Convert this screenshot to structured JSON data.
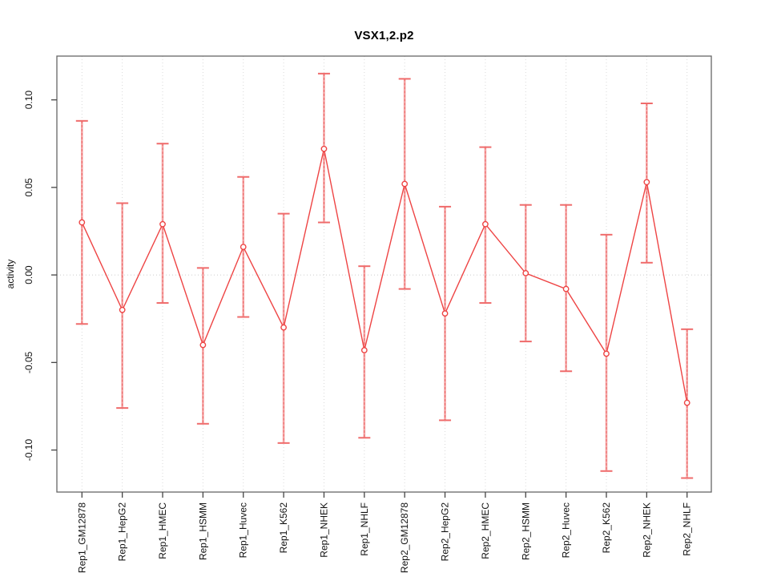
{
  "window": {
    "title": "VSX1,2.p2"
  },
  "chart_data": {
    "type": "line",
    "title": "VSX1,2.p2",
    "xlabel": "",
    "ylabel": "activity",
    "legend": "none",
    "grid": "vertical dotted gridline per category; dotted horizontal line at y=0",
    "categories": [
      "Rep1_GM12878",
      "Rep1_HepG2",
      "Rep1_HMEC",
      "Rep1_HSMM",
      "Rep1_Huvec",
      "Rep1_K562",
      "Rep1_NHEK",
      "Rep1_NHLF",
      "Rep2_GM12878",
      "Rep2_HepG2",
      "Rep2_HMEC",
      "Rep2_HSMM",
      "Rep2_Huvec",
      "Rep2_K562",
      "Rep2_NHEK",
      "Rep2_NHLF"
    ],
    "series": [
      {
        "name": "activity",
        "values": [
          0.03,
          -0.02,
          0.029,
          -0.04,
          0.016,
          -0.03,
          0.072,
          -0.043,
          0.052,
          -0.022,
          0.029,
          0.001,
          -0.008,
          -0.045,
          0.053,
          -0.073
        ]
      }
    ],
    "error_upper": [
      0.088,
      0.041,
      0.075,
      0.004,
      0.056,
      0.035,
      0.115,
      0.005,
      0.112,
      0.039,
      0.073,
      0.04,
      0.04,
      0.023,
      0.098,
      -0.031
    ],
    "error_lower": [
      -0.028,
      -0.076,
      -0.016,
      -0.085,
      -0.024,
      -0.096,
      0.03,
      -0.093,
      -0.008,
      -0.083,
      -0.016,
      -0.038,
      -0.055,
      -0.112,
      0.007,
      -0.116
    ],
    "yticks": [
      -0.1,
      -0.05,
      0.0,
      0.05,
      0.1
    ],
    "ytick_labels": [
      "-0.10",
      "-0.05",
      "0.00",
      "0.05",
      "0.10"
    ],
    "ylim": [
      -0.124,
      0.125
    ],
    "marker": "open-circle",
    "colors": {
      "line": "#ee4444",
      "marker": "#ee4444",
      "errorbar_stem": "#f6a8a8",
      "errorbar_dash": "#e95c5c",
      "errorbar_cap": "#ef6b6b",
      "gridline": "#d9d9d9",
      "zero_line": "#cccccc",
      "box": "#666666",
      "tick": "#444444",
      "text": "#111111",
      "background": "#ffffff"
    }
  }
}
